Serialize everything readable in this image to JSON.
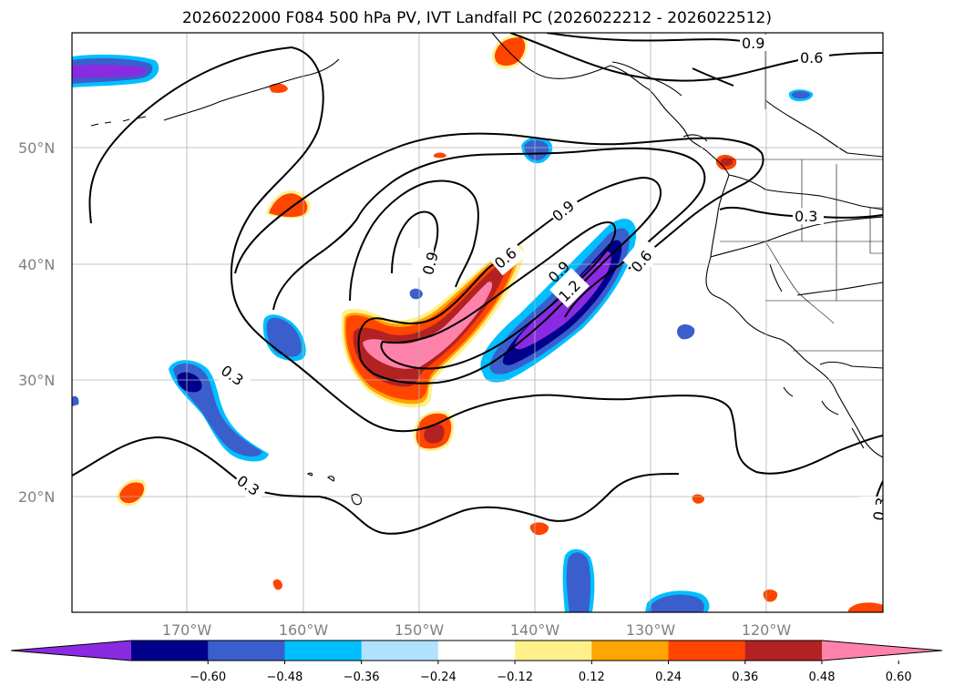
{
  "title": "2026022000 F084 500 hPa PV, IVT Landfall PC (2026022212 - 2026022512)",
  "lat_labels": [
    "50°N",
    "40°N",
    "30°N",
    "20°N"
  ],
  "lon_labels": [
    "170°W",
    "160°W",
    "150°W",
    "140°W",
    "130°W",
    "120°W"
  ],
  "colorbar": {
    "colors": [
      "#8a2be2",
      "#00008b",
      "#3a5fcd",
      "#00bfff",
      "#b0e2ff",
      "#ffffff",
      "#fff08c",
      "#ffa500",
      "#ff4500",
      "#b22222",
      "#ff82ab"
    ],
    "ticks": [
      "−0.60",
      "−0.48",
      "−0.36",
      "−0.24",
      "−0.12",
      "0.12",
      "0.24",
      "0.36",
      "0.48",
      "0.60"
    ]
  },
  "contour_labels": [
    {
      "id": "c1",
      "text": "0.9"
    },
    {
      "id": "c2",
      "text": "0.6"
    },
    {
      "id": "c3",
      "text": "0.3"
    },
    {
      "id": "c4",
      "text": "0.9"
    },
    {
      "id": "c5",
      "text": "0.9"
    },
    {
      "id": "c6",
      "text": "0.6"
    },
    {
      "id": "c7",
      "text": "0.6"
    },
    {
      "id": "c8",
      "text": "1.2"
    },
    {
      "id": "c9",
      "text": "0.9"
    },
    {
      "id": "c10",
      "text": "0.3"
    },
    {
      "id": "c11",
      "text": "0.3"
    },
    {
      "id": "c12",
      "text": "0.3"
    }
  ]
}
